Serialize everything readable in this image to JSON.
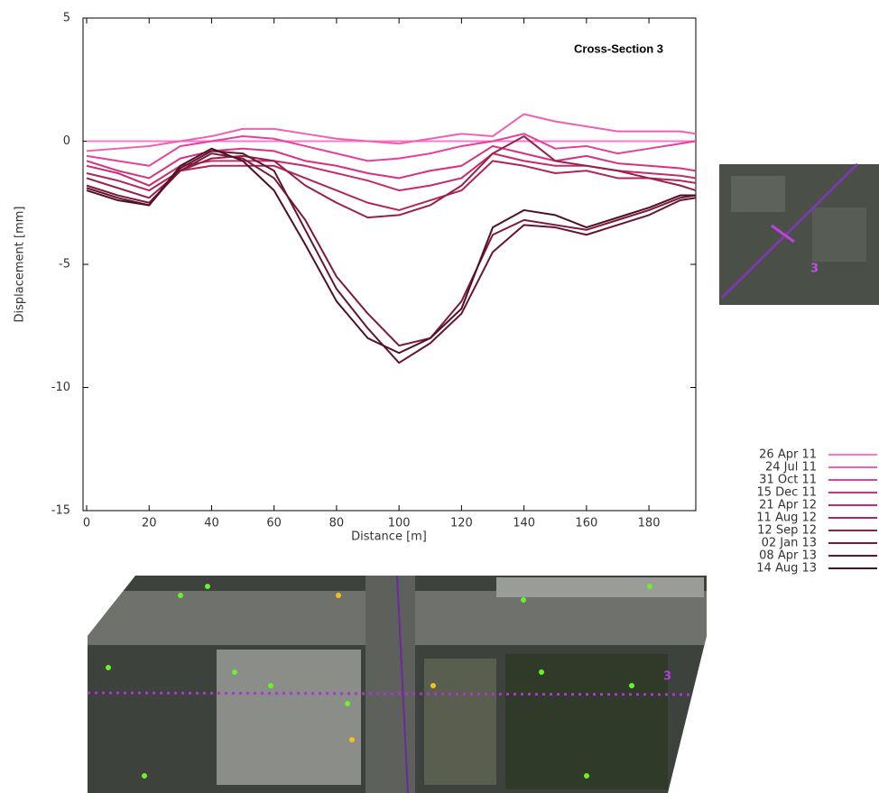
{
  "chart_data": {
    "type": "line",
    "title": "Cross-Section 3",
    "x_label": "Distance [m]",
    "y_label": "Displacement [mm]",
    "x": [
      0,
      10,
      20,
      30,
      40,
      50,
      60,
      70,
      80,
      90,
      100,
      110,
      120,
      130,
      140,
      150,
      160,
      170,
      180,
      190,
      195
    ],
    "xlim": [
      0,
      195
    ],
    "xticks": [
      0,
      20,
      40,
      60,
      80,
      100,
      120,
      140,
      160,
      180
    ],
    "ylim": [
      -15,
      5
    ],
    "yticks": [
      -15,
      -10,
      -5,
      0,
      5
    ],
    "legend": "right",
    "inset_label": "3",
    "aerial_label": "3",
    "series": [
      {
        "name": "26 Apr 11",
        "color": "#ff77cc",
        "values": [
          0,
          0,
          0,
          0,
          0,
          0,
          0,
          0,
          0,
          0,
          0,
          0,
          0,
          0,
          0,
          0,
          0,
          0,
          0,
          0,
          0
        ]
      },
      {
        "name": "24 Jul 11",
        "color": "#f060b0",
        "values": [
          -0.4,
          -0.3,
          -0.2,
          0,
          0.2,
          0.5,
          0.5,
          0.3,
          0.1,
          0,
          -0.1,
          0.1,
          0.3,
          0.2,
          1.1,
          0.8,
          0.6,
          0.4,
          0.4,
          0.4,
          0.3
        ]
      },
      {
        "name": "31 Oct 11",
        "color": "#e8409a",
        "values": [
          -0.6,
          -0.8,
          -1,
          -0.2,
          0,
          0.2,
          0.1,
          -0.2,
          -0.5,
          -0.8,
          -0.7,
          -0.5,
          -0.2,
          0,
          0.3,
          -0.3,
          -0.2,
          -0.5,
          -0.3,
          -0.1,
          0
        ]
      },
      {
        "name": "15 Dec 11",
        "color": "#d8307f",
        "values": [
          -0.8,
          -1.2,
          -1.5,
          -0.7,
          -0.4,
          -0.3,
          -0.4,
          -0.8,
          -1,
          -1.3,
          -1.5,
          -1.2,
          -1,
          -0.2,
          -0.5,
          -0.8,
          -0.6,
          -0.9,
          -1,
          -1.1,
          -1.2
        ]
      },
      {
        "name": "21 Apr 12",
        "color": "#c82a6e",
        "values": [
          -1,
          -1.3,
          -1.8,
          -1,
          -0.8,
          -0.8,
          -0.8,
          -1,
          -1.3,
          -1.6,
          -2,
          -1.8,
          -1.5,
          -0.5,
          -0.8,
          -1,
          -1,
          -1.2,
          -1.3,
          -1.4,
          -1.5
        ]
      },
      {
        "name": "11 Aug 12",
        "color": "#b0255a",
        "values": [
          -1.3,
          -1.6,
          -2,
          -1.2,
          -1,
          -1,
          -1,
          -1.5,
          -2,
          -2.5,
          -2.8,
          -2.4,
          -2,
          -0.8,
          -1,
          -1.3,
          -1.2,
          -1.5,
          -1.5,
          -1.6,
          -1.7
        ]
      },
      {
        "name": "12 Sep 12",
        "color": "#962048",
        "values": [
          -1.5,
          -1.9,
          -2.3,
          -1.2,
          -0.7,
          -0.6,
          -0.8,
          -1.8,
          -2.5,
          -3.1,
          -3,
          -2.6,
          -1.8,
          -0.5,
          0.2,
          -0.8,
          -1,
          -1.2,
          -1.5,
          -1.8,
          -2
        ]
      },
      {
        "name": "02 Jan 13",
        "color": "#7d1a3a",
        "values": [
          -1.8,
          -2.2,
          -2.5,
          -1.2,
          -0.5,
          -0.7,
          -1.5,
          -3.2,
          -5.5,
          -7,
          -8.3,
          -8,
          -6.5,
          -3.8,
          -3.2,
          -3.4,
          -3.6,
          -3.2,
          -2.8,
          -2.3,
          -2.2
        ]
      },
      {
        "name": "08 Apr 13",
        "color": "#66152f",
        "values": [
          -1.9,
          -2.3,
          -2.6,
          -1.1,
          -0.4,
          -0.5,
          -1.2,
          -3.6,
          -6,
          -7.6,
          -9,
          -8.2,
          -7,
          -4.5,
          -3.4,
          -3.5,
          -3.8,
          -3.4,
          -3,
          -2.4,
          -2.3
        ]
      },
      {
        "name": "14 Aug 13",
        "color": "#4f1024",
        "values": [
          -2,
          -2.4,
          -2.6,
          -1,
          -0.3,
          -0.8,
          -2,
          -4.2,
          -6.5,
          -8,
          -8.6,
          -8,
          -6.8,
          -3.5,
          -2.8,
          -3,
          -3.5,
          -3.1,
          -2.7,
          -2.2,
          -2.2
        ]
      }
    ]
  }
}
